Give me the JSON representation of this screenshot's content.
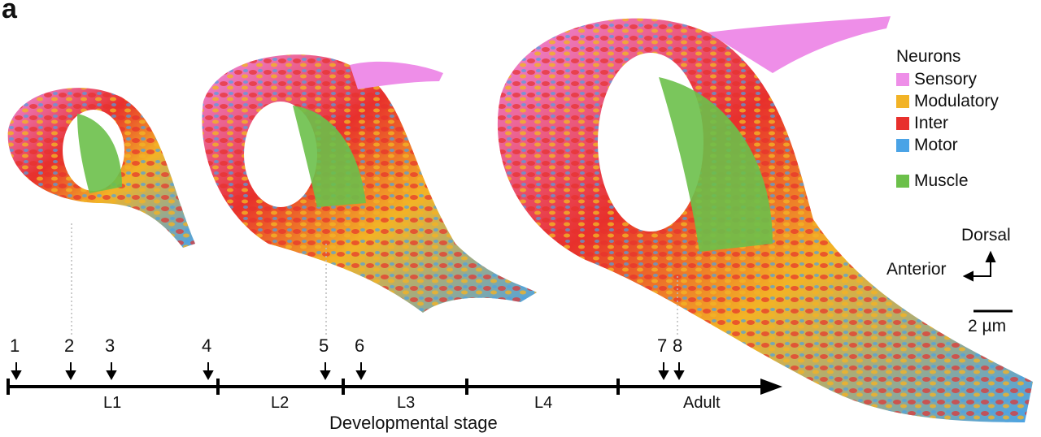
{
  "panel_label": "a",
  "legend": {
    "title": "Neurons",
    "items": [
      {
        "label": "Sensory",
        "color": "#ee8ee8"
      },
      {
        "label": "Modulatory",
        "color": "#f2b326"
      },
      {
        "label": "Inter",
        "color": "#e8302c"
      },
      {
        "label": "Motor",
        "color": "#4aa3e6"
      },
      {
        "label": "Muscle",
        "color": "#6cc04a"
      }
    ]
  },
  "orientation": {
    "dorsal": "Dorsal",
    "anterior": "Anterior"
  },
  "scale_bar": {
    "label": "2 µm"
  },
  "timeline": {
    "title": "Developmental stage",
    "stages": [
      "L1",
      "L2",
      "L3",
      "L4",
      "Adult"
    ],
    "datasets": [
      "1",
      "2",
      "3",
      "4",
      "5",
      "6",
      "7",
      "8"
    ]
  },
  "colors": {
    "sensory": "#ee8ee8",
    "modulatory": "#f2b326",
    "inter": "#e8302c",
    "motor": "#4aa3e6",
    "muscle": "#6cc04a",
    "axis": "#000000"
  }
}
